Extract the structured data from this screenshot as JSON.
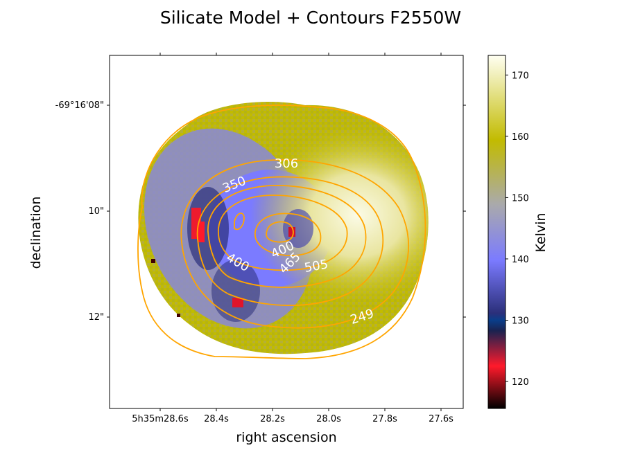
{
  "chart_data": {
    "type": "heatmap",
    "title": "Silicate Model + Contours F2550W",
    "xlabel": "right ascension",
    "ylabel": "declination",
    "x_ticks": [
      "5h35m28.6s",
      "28.4s",
      "28.2s",
      "28.0s",
      "27.8s",
      "27.6s"
    ],
    "y_ticks": [
      "-69°16'08\"",
      "10\"",
      "12\""
    ],
    "colorbar": {
      "label": "Kelvin",
      "range": [
        115.6,
        173.2
      ],
      "ticks": [
        120,
        130,
        140,
        150,
        160,
        170
      ],
      "colors": [
        "#000000",
        "#ff1a2b",
        "#1a2250",
        "#7b7bff",
        "#aaaaaa",
        "#c2bb00",
        "#fffff2"
      ]
    },
    "contour_levels": [
      249,
      306,
      350,
      400,
      465,
      505
    ],
    "contour_labels": [
      "306",
      "350",
      "400",
      "400",
      "465",
      "505",
      "249"
    ],
    "contour_color": "#ffa500",
    "map_regions": [
      {
        "region": "outer ring",
        "kelvin": 158
      },
      {
        "region": "eastern arc",
        "kelvin": 142
      },
      {
        "region": "eastern red patches",
        "kelvin": 119
      },
      {
        "region": "central disk",
        "kelvin": 140
      },
      {
        "region": "western bright lobe",
        "kelvin": 170
      }
    ]
  }
}
